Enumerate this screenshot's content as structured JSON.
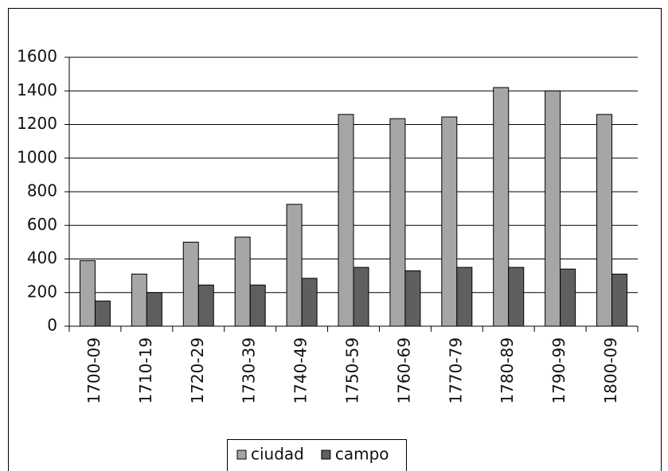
{
  "chart_data": {
    "type": "bar",
    "categories": [
      "1700-09",
      "1710-19",
      "1720-29",
      "1730-39",
      "1740-49",
      "1750-59",
      "1760-69",
      "1770-79",
      "1780-89",
      "1790-99",
      "1800-09"
    ],
    "series": [
      {
        "name": "ciudad",
        "color": "#a6a6a6",
        "values": [
          390,
          310,
          500,
          530,
          725,
          1260,
          1235,
          1245,
          1420,
          1400,
          1260
        ]
      },
      {
        "name": "campo",
        "color": "#5f5f5f",
        "values": [
          150,
          200,
          245,
          245,
          285,
          350,
          330,
          350,
          350,
          340,
          310
        ]
      }
    ],
    "ylim": [
      0,
      1600
    ],
    "yticks": [
      0,
      200,
      400,
      600,
      800,
      1000,
      1200,
      1400,
      1600
    ],
    "grid": true,
    "legend": "bottom"
  }
}
